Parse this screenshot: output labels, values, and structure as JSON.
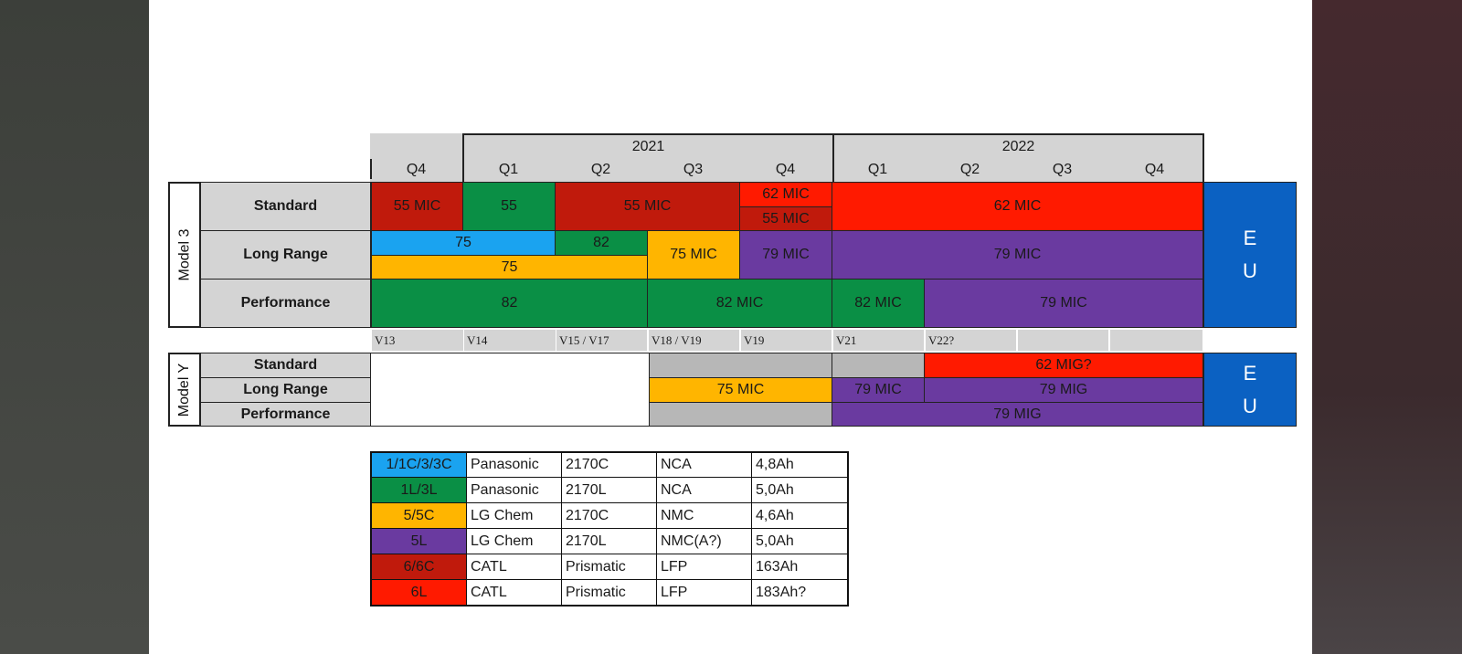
{
  "colors": {
    "blue": "#1aa3f0",
    "green": "#0a8f45",
    "orange": "#ffb500",
    "purple": "#6a3aa0",
    "darkred": "#c01a0c",
    "red": "#ff1a00",
    "gray": "#d4d4d4",
    "midgray": "#b7b7b7",
    "eu_blue": "#0b61c2"
  },
  "header": {
    "years": [
      "2021",
      "2022"
    ],
    "quarters": [
      "Q4",
      "Q1",
      "Q2",
      "Q3",
      "Q4",
      "Q1",
      "Q2",
      "Q3",
      "Q4"
    ]
  },
  "model3": {
    "label": "Model 3",
    "rows": [
      "Standard",
      "Long Range",
      "Performance"
    ],
    "standard": [
      "55 MIC",
      "55",
      "55 MIC",
      "62 MIC",
      "55 MIC",
      "62 MIC"
    ],
    "long_range": [
      "75",
      "82",
      "75",
      "75 MIC",
      "79 MIC",
      "79 MIC"
    ],
    "performance": [
      "82",
      "82 MIC",
      "82 MIC",
      "79 MIC"
    ],
    "region": [
      "E",
      "U"
    ]
  },
  "versions": [
    "V13",
    "V14",
    "V15 / V17",
    "V18 / V19",
    "V19",
    "V21",
    "V22?"
  ],
  "modely": {
    "label": "Model Y",
    "rows": [
      "Standard",
      "Long Range",
      "Performance"
    ],
    "standard": [
      "62 MIG?"
    ],
    "long_range": [
      "75 MIC",
      "79 MIC",
      "79 MIG"
    ],
    "performance": [
      "79 MIG"
    ],
    "region": [
      "E",
      "U"
    ]
  },
  "legend": [
    {
      "code": "1/1C/3/3C",
      "maker": "Panasonic",
      "cell": "2170C",
      "chem": "NCA",
      "cap": "4,8Ah",
      "color": "#1aa3f0"
    },
    {
      "code": "1L/3L",
      "maker": "Panasonic",
      "cell": "2170L",
      "chem": "NCA",
      "cap": "5,0Ah",
      "color": "#0a8f45"
    },
    {
      "code": "5/5C",
      "maker": "LG Chem",
      "cell": "2170C",
      "chem": "NMC",
      "cap": "4,6Ah",
      "color": "#ffb500"
    },
    {
      "code": "5L",
      "maker": "LG Chem",
      "cell": "2170L",
      "chem": "NMC(A?)",
      "cap": "5,0Ah",
      "color": "#6a3aa0"
    },
    {
      "code": "6/6C",
      "maker": "CATL",
      "cell": "Prismatic",
      "chem": "LFP",
      "cap": "163Ah",
      "color": "#c01a0c"
    },
    {
      "code": "6L",
      "maker": "CATL",
      "cell": "Prismatic",
      "chem": "LFP",
      "cap": "183Ah?",
      "color": "#ff1a00"
    }
  ]
}
